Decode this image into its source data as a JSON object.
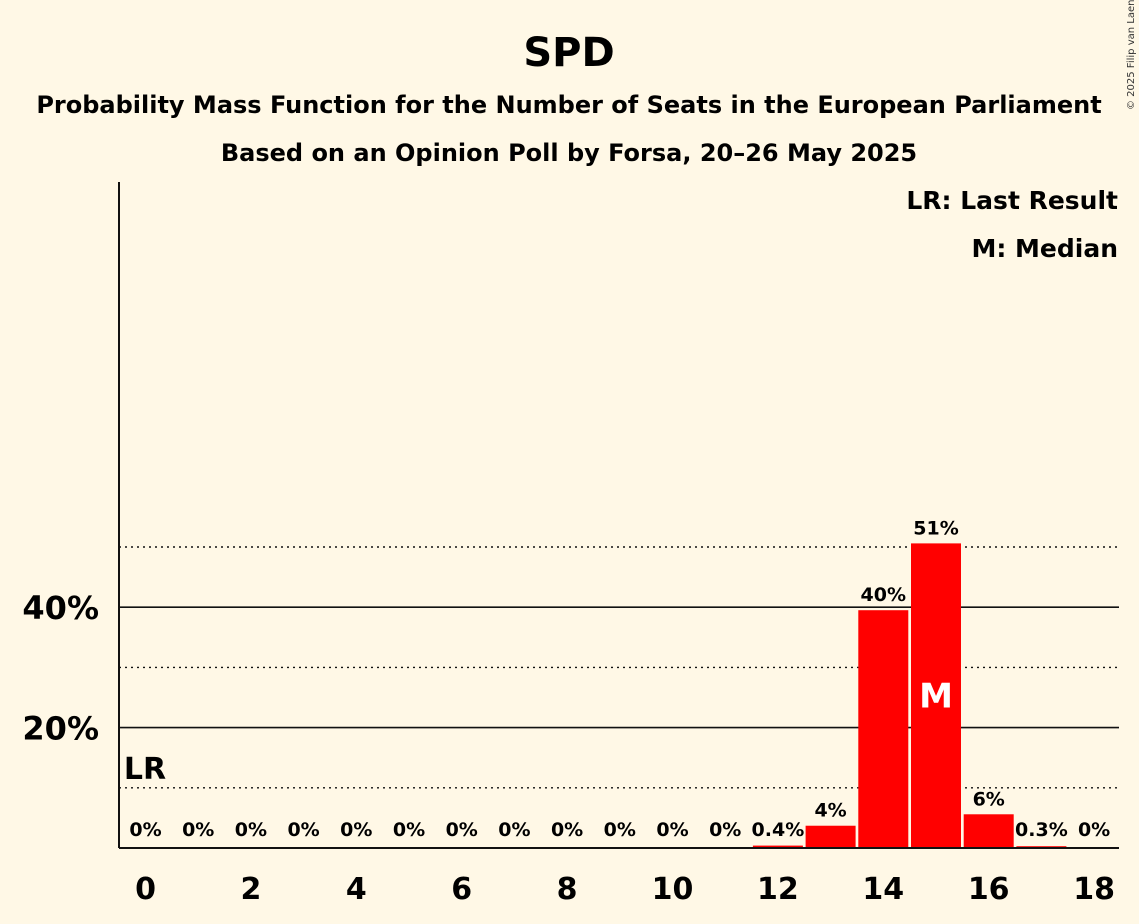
{
  "chart_data": {
    "type": "bar",
    "title": "SPD",
    "subtitles": [
      "Probability Mass Function for the Number of Seats in the European Parliament",
      "Based on an Opinion Poll by Forsa, 20–26 May 2025"
    ],
    "copyright": "© 2025 Filip van Laenen",
    "x": [
      0,
      1,
      2,
      3,
      4,
      5,
      6,
      7,
      8,
      9,
      10,
      11,
      12,
      13,
      14,
      15,
      16,
      17,
      18
    ],
    "values": [
      0,
      0,
      0,
      0,
      0,
      0,
      0,
      0,
      0,
      0,
      0,
      0,
      0.4,
      3.7,
      39.5,
      50.6,
      5.6,
      0.3,
      0
    ],
    "value_labels": [
      "0%",
      "0%",
      "0%",
      "0%",
      "0%",
      "0%",
      "0%",
      "0%",
      "0%",
      "0%",
      "0%",
      "0%",
      "0.4%",
      "4%",
      "40%",
      "51%",
      "6%",
      "0.3%",
      "0%"
    ],
    "x_tick_labels": [
      {
        "x": 0,
        "label": "0"
      },
      {
        "x": 2,
        "label": "2"
      },
      {
        "x": 4,
        "label": "4"
      },
      {
        "x": 6,
        "label": "6"
      },
      {
        "x": 8,
        "label": "8"
      },
      {
        "x": 10,
        "label": "10"
      },
      {
        "x": 12,
        "label": "12"
      },
      {
        "x": 14,
        "label": "14"
      },
      {
        "x": 16,
        "label": "16"
      },
      {
        "x": 18,
        "label": "18"
      }
    ],
    "y_tick_labels": [
      {
        "y": 20,
        "label": "20%"
      },
      {
        "y": 40,
        "label": "40%"
      }
    ],
    "y_dotted_gridlines": [
      10,
      30,
      50
    ],
    "y_solid_gridlines": [
      20,
      40
    ],
    "ylim": [
      0,
      55
    ],
    "bar_color": "#ff0000",
    "last_result": {
      "x": 0,
      "label": "LR"
    },
    "median": {
      "x": 15,
      "label": "M"
    },
    "legend": {
      "placement": "top-right",
      "entries": [
        "LR: Last Result",
        "M: Median"
      ]
    }
  }
}
